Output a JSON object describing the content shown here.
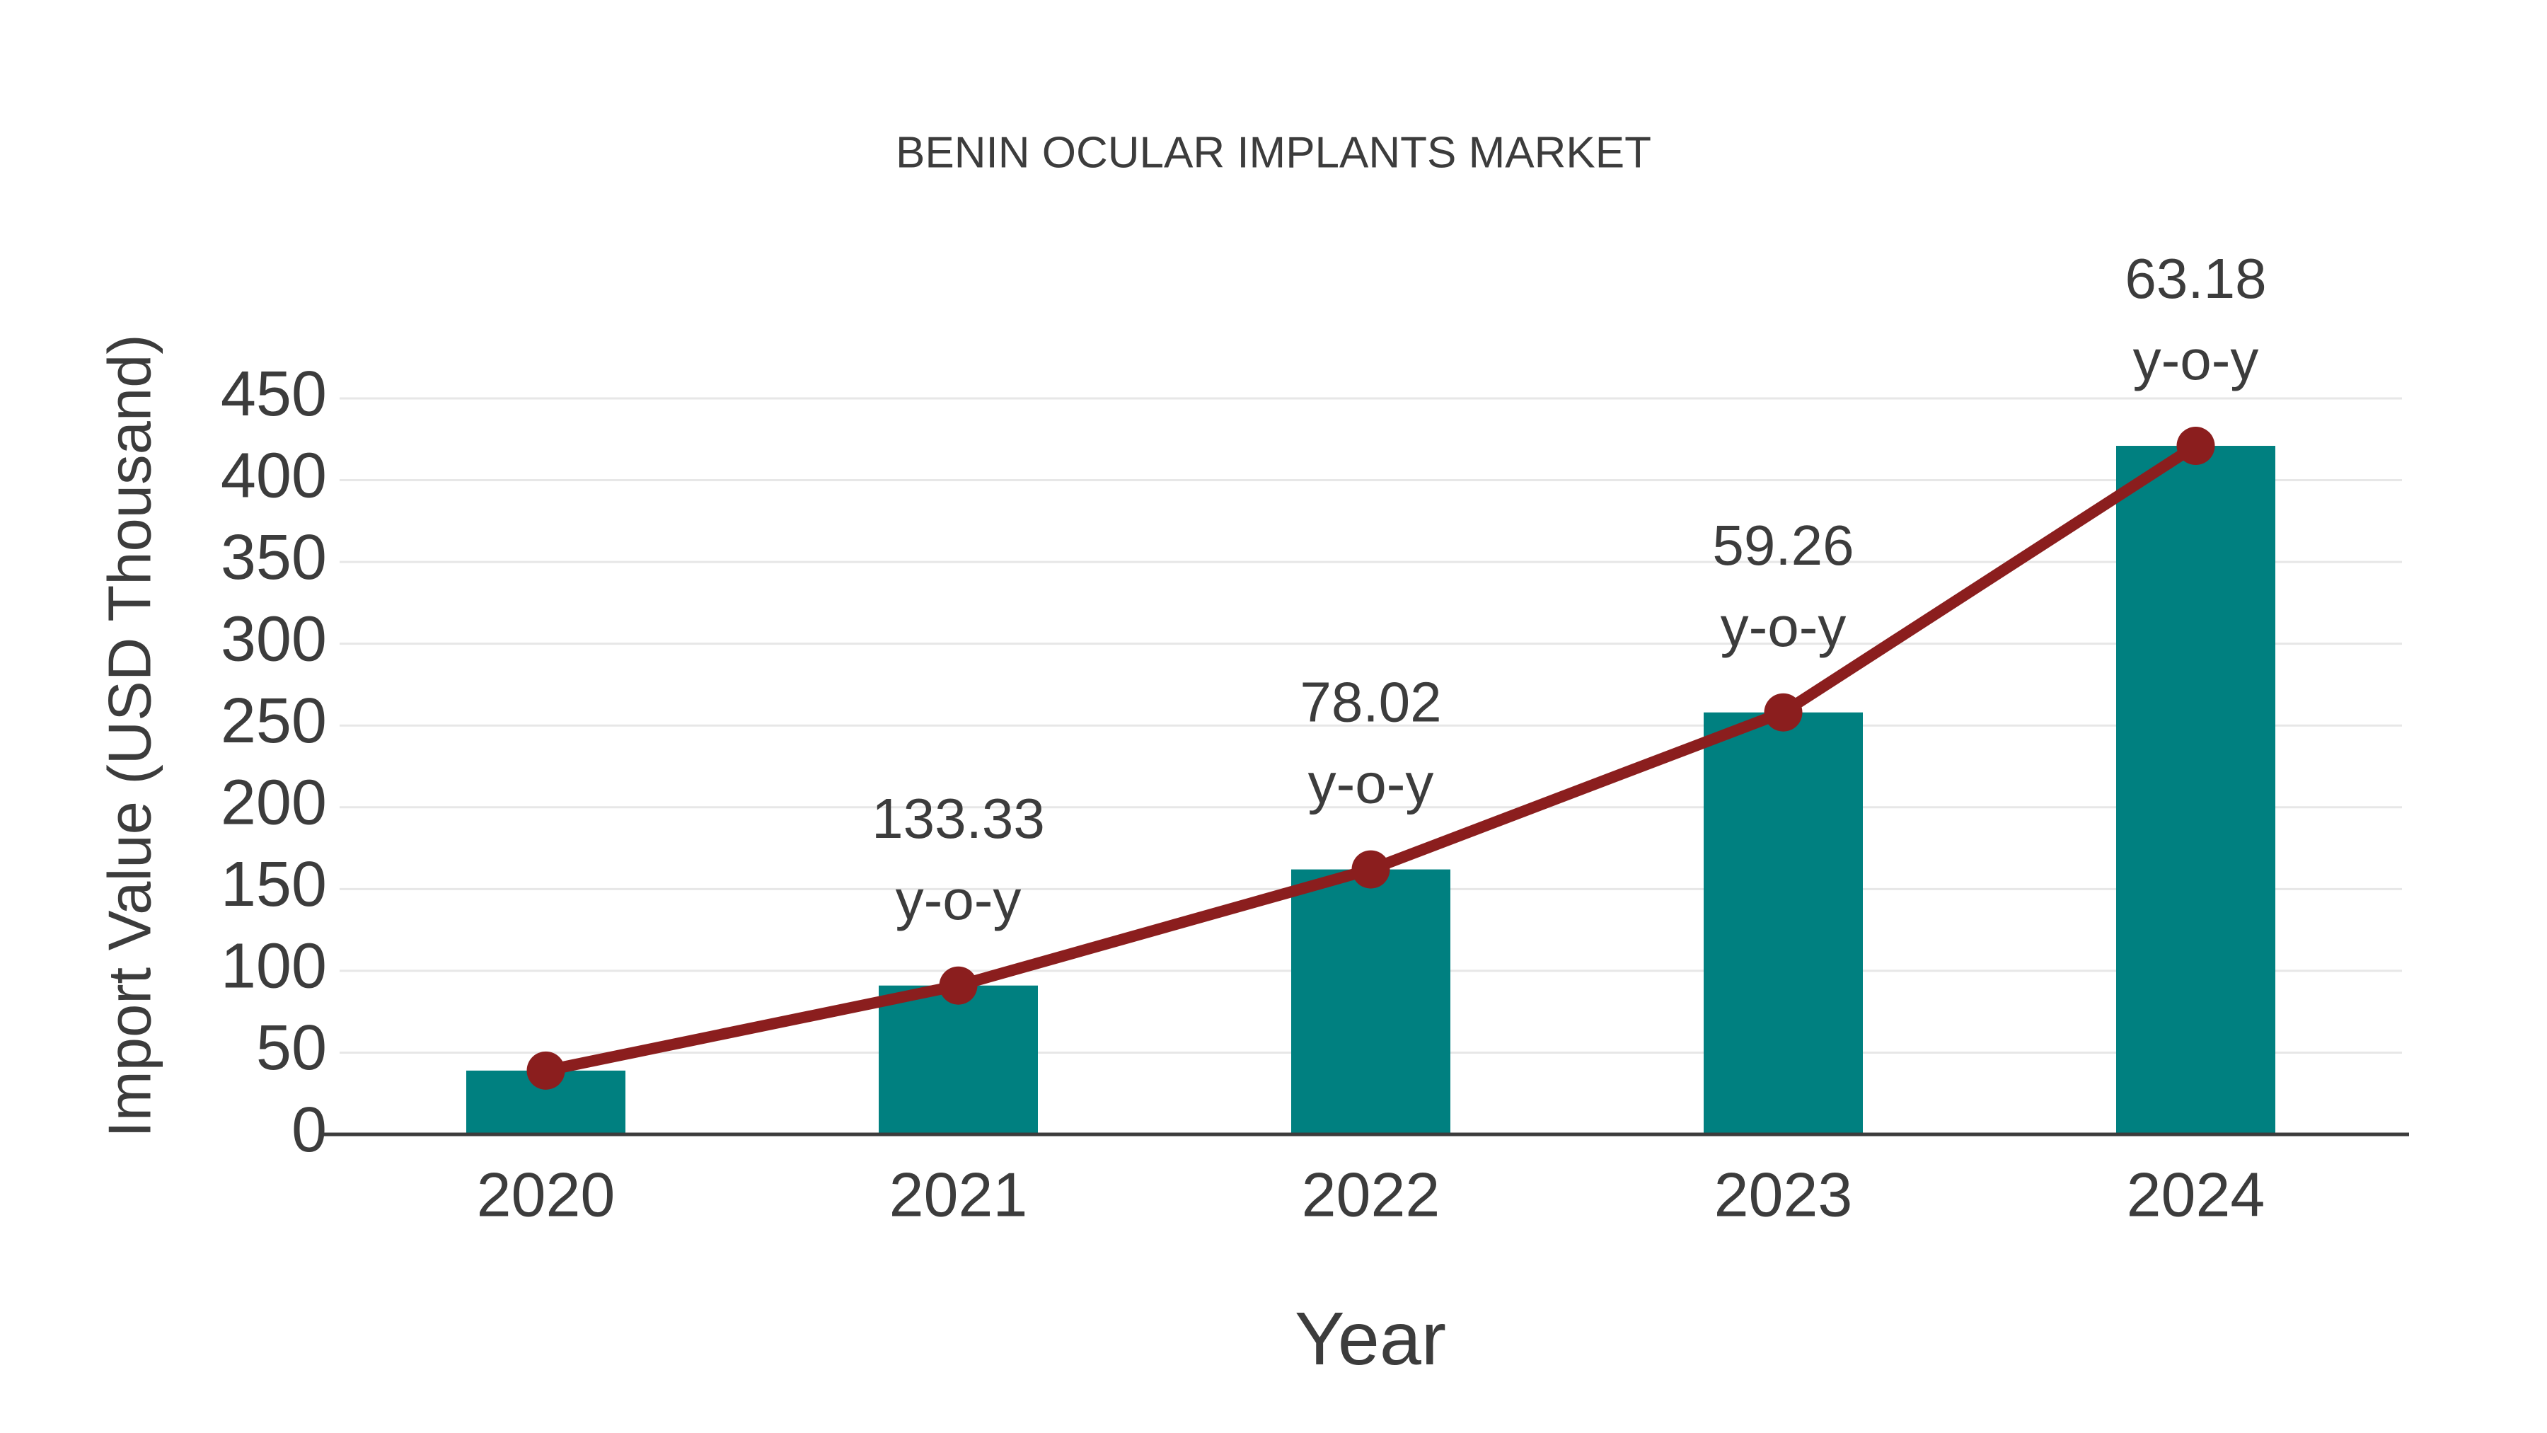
{
  "chart_data": {
    "type": "bar",
    "title": "BENIN OCULAR IMPLANTS MARKET",
    "xlabel": "Year",
    "ylabel": "Import Value (USD Thousand)",
    "categories": [
      "2020",
      "2021",
      "2022",
      "2023",
      "2024"
    ],
    "series": [
      {
        "name": "import-value-bars",
        "type": "bar",
        "values": [
          39,
          91,
          162,
          258,
          421
        ],
        "color": "#008080"
      },
      {
        "name": "import-value-trend",
        "type": "line",
        "values": [
          39,
          91,
          162,
          258,
          421
        ],
        "color": "#8b1e1e"
      }
    ],
    "annotations": [
      {
        "category": "2021",
        "lines": [
          "133.33",
          "y-o-y"
        ]
      },
      {
        "category": "2022",
        "lines": [
          "78.02",
          "y-o-y"
        ]
      },
      {
        "category": "2023",
        "lines": [
          "59.26",
          "y-o-y"
        ]
      },
      {
        "category": "2024",
        "lines": [
          "63.18",
          "y-o-y"
        ]
      }
    ],
    "ylim": [
      0,
      450
    ],
    "yticks": [
      0,
      50,
      100,
      150,
      200,
      250,
      300,
      350,
      400,
      450
    ],
    "grid": "horizontal",
    "legend": "none",
    "colors": {
      "background": "#ffffff",
      "text": "#3c3c3c",
      "grid": "#e7e7e7",
      "axis": "#3c3c3c",
      "bar": "#008080",
      "line": "#8b1e1e"
    }
  }
}
